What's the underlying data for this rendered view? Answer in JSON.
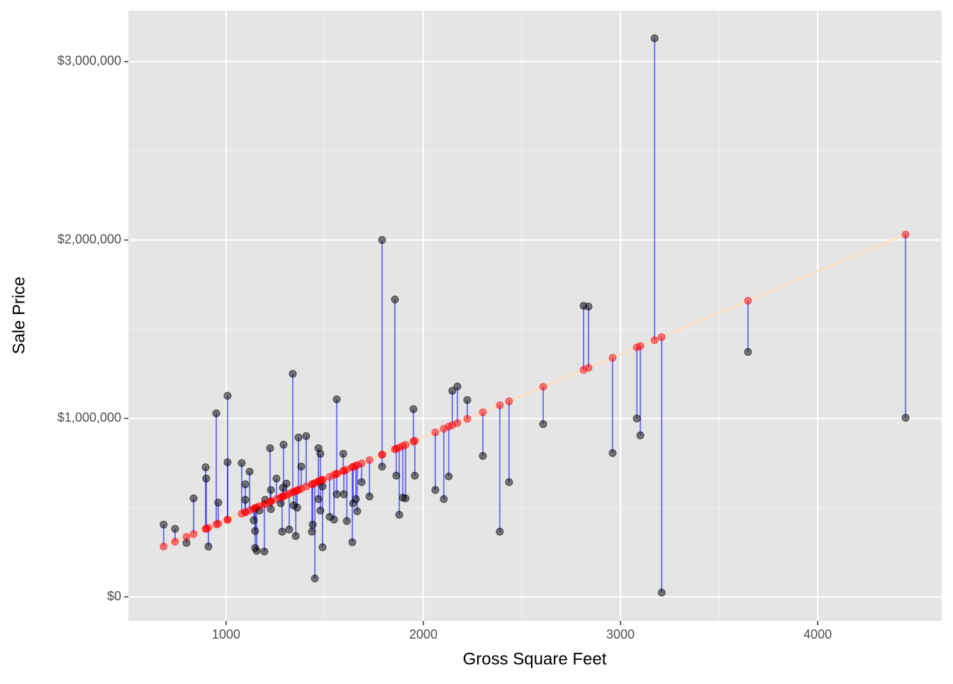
{
  "chart_data": {
    "type": "scatter",
    "xlabel": "Gross Square Feet",
    "ylabel": "Sale Price",
    "x": [
      683,
      741,
      799,
      835,
      896,
      899,
      910,
      950,
      960,
      1007,
      1007,
      1079,
      1097,
      1097,
      1119,
      1140,
      1147,
      1147,
      1155,
      1169,
      1194,
      1198,
      1223,
      1227,
      1227,
      1255,
      1277,
      1288,
      1284,
      1291,
      1306,
      1320,
      1338,
      1342,
      1353,
      1360,
      1367,
      1381,
      1406,
      1435,
      1439,
      1450,
      1468,
      1468,
      1478,
      1478,
      1489,
      1489,
      1525,
      1547,
      1561,
      1561,
      1594,
      1597,
      1612,
      1640,
      1644,
      1658,
      1665,
      1687,
      1727,
      1791,
      1791,
      1856,
      1863,
      1878,
      1896,
      1910,
      1950,
      1957,
      2061,
      2104,
      2129,
      2147,
      2173,
      2223,
      2302,
      2388,
      2435,
      2608,
      2813,
      2838,
      2960,
      3083,
      3101,
      3173,
      3209,
      3647,
      4446
    ],
    "values": [
      405000,
      381000,
      302000,
      552000,
      726000,
      663000,
      282000,
      1028000,
      528000,
      1127000,
      754000,
      750000,
      544000,
      631000,
      702000,
      429000,
      369000,
      274000,
      258000,
      484000,
      254000,
      544000,
      833000,
      599000,
      492000,
      663000,
      524000,
      611000,
      365000,
      853000,
      635000,
      377000,
      1250000,
      512000,
      341000,
      500000,
      893000,
      730000,
      901000,
      365000,
      405000,
      103000,
      833000,
      548000,
      484000,
      802000,
      619000,
      278000,
      448000,
      433000,
      1107000,
      575000,
      802000,
      575000,
      425000,
      306000,
      524000,
      548000,
      480000,
      643000,
      563000,
      2000000,
      730000,
      1667000,
      679000,
      460000,
      556000,
      552000,
      1052000,
      679000,
      599000,
      548000,
      675000,
      1155000,
      1179000,
      1103000,
      790000,
      365000,
      643000,
      968000,
      1631000,
      1627000,
      806000,
      1000000,
      905000,
      3131000,
      24000,
      1373000,
      1004000
    ],
    "fitted": [
      282000,
      309000,
      336000,
      352000,
      381000,
      382000,
      387000,
      406000,
      410000,
      432000,
      432000,
      466000,
      474000,
      474000,
      484000,
      494000,
      497000,
      497000,
      501000,
      508000,
      519000,
      521000,
      533000,
      535000,
      535000,
      548000,
      558000,
      563000,
      561000,
      564000,
      571000,
      578000,
      586000,
      588000,
      593000,
      596000,
      600000,
      606000,
      618000,
      631000,
      633000,
      638000,
      647000,
      647000,
      651000,
      651000,
      656000,
      656000,
      673000,
      683000,
      690000,
      690000,
      705000,
      707000,
      714000,
      727000,
      728000,
      735000,
      738000,
      748000,
      767000,
      797000,
      797000,
      827000,
      830000,
      837000,
      846000,
      852000,
      871000,
      874000,
      922000,
      942000,
      954000,
      962000,
      974000,
      998000,
      1034000,
      1074000,
      1096000,
      1177000,
      1272000,
      1284000,
      1340000,
      1398000,
      1406000,
      1439000,
      1456000,
      1660000,
      2031000
    ],
    "point_color": "#000000",
    "fitted_color": "#ff0000",
    "segment_color": "#0000ff",
    "line_color": "#ffdab9",
    "xlim": [
      504,
      4629
    ],
    "ylim": [
      -135000,
      3286000
    ],
    "xticks": [
      1000,
      2000,
      3000,
      4000
    ],
    "yticks": [
      {
        "value": 0,
        "label": "$0"
      },
      {
        "value": 1000000,
        "label": "$1,000,000"
      },
      {
        "value": 2000000,
        "label": "$2,000,000"
      },
      {
        "value": 3000000,
        "label": "$3,000,000"
      }
    ],
    "xminorticks": [
      1500,
      2500,
      3500
    ],
    "yminorticks": [
      500000,
      1500000,
      2500000
    ],
    "grid": true
  }
}
